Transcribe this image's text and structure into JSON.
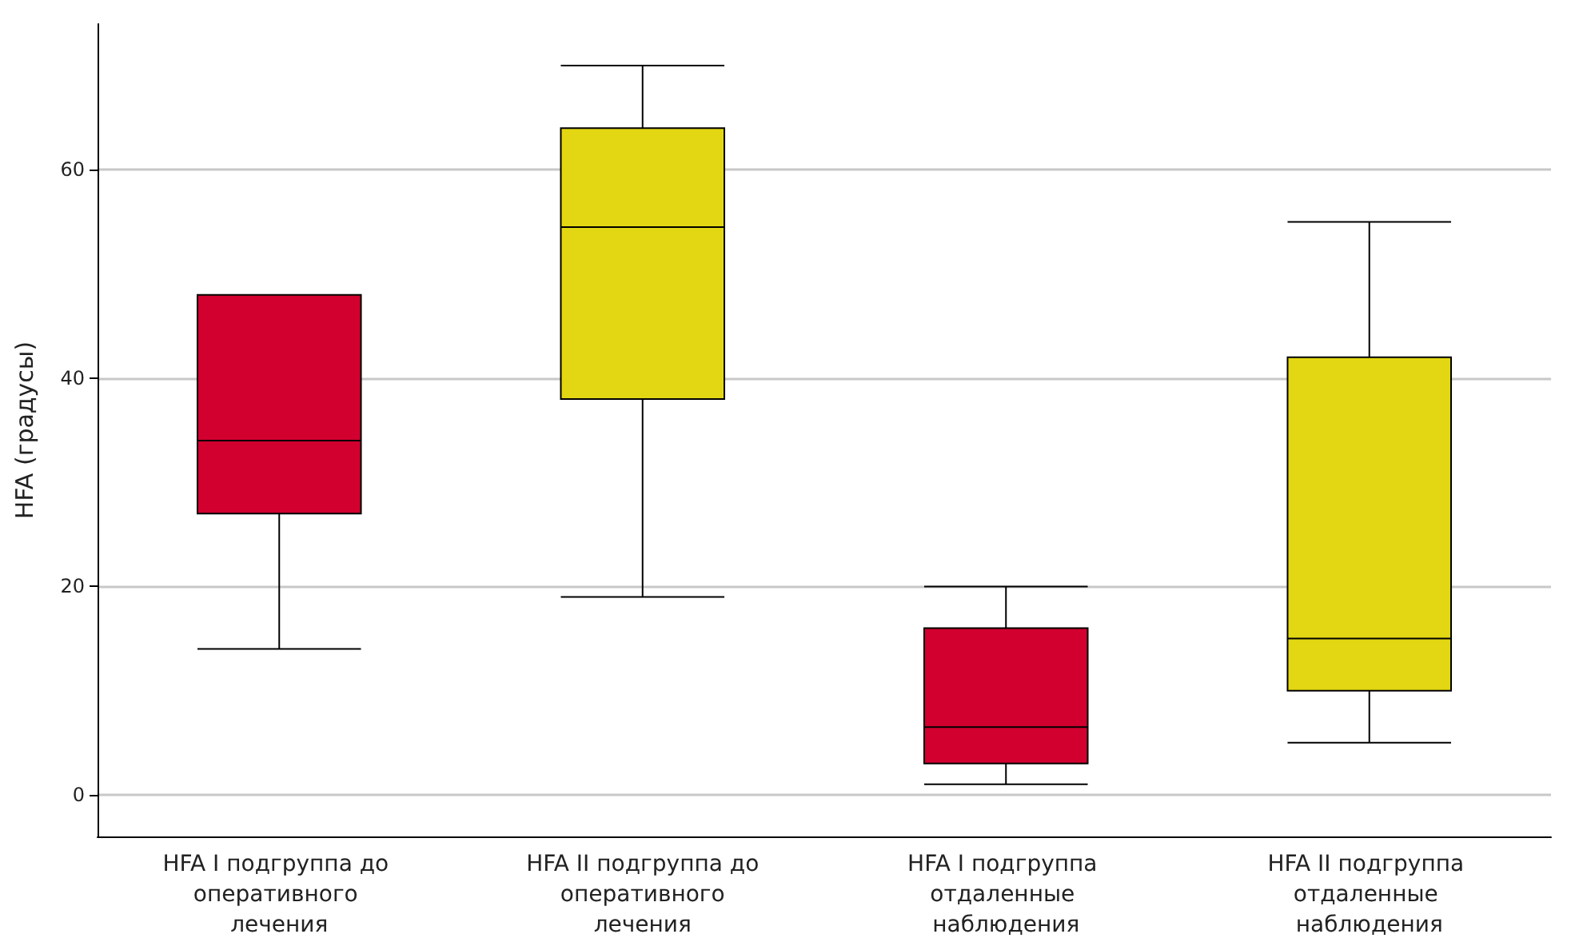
{
  "chart_data": {
    "type": "box",
    "ylabel": "HFA (градусы)",
    "categories": [
      "HFA I подгруппа до оперативного лечения",
      "HFA II подгруппа до оперативного лечения",
      "HFA I подгруппа отдаленные наблюдения",
      "HFA II подгруппа отдаленные наблюдения"
    ],
    "boxes": [
      {
        "low": 14,
        "q1": 27,
        "median": 34,
        "q3": 48,
        "high": 48
      },
      {
        "low": 19,
        "q1": 38,
        "median": 54.5,
        "q3": 64,
        "high": 70
      },
      {
        "low": 1,
        "q1": 3,
        "median": 6.5,
        "q3": 16,
        "high": 20
      },
      {
        "low": 5,
        "q1": 10,
        "median": 15,
        "q3": 42,
        "high": 55
      }
    ],
    "colors": [
      "#d2002f",
      "#e2d712",
      "#d2002f",
      "#e2d712"
    ],
    "ylim": [
      -4,
      74
    ],
    "yticks": [
      0,
      20,
      40,
      60
    ],
    "grid": "y"
  }
}
